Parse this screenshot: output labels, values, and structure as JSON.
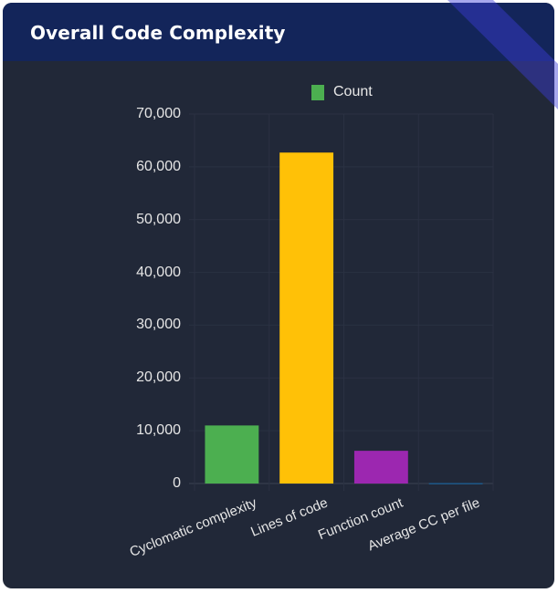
{
  "card": {
    "title": "Overall Code Complexity"
  },
  "legend": {
    "label": "Count",
    "color": "#4caf50"
  },
  "colors": {
    "header_bg": "#13255a",
    "card_bg": "#212838",
    "stripe": "#3b3bd6"
  },
  "chart_data": {
    "type": "bar",
    "title": "Overall Code Complexity",
    "categories": [
      "Cyclomatic complexity",
      "Lines of code",
      "Function count",
      "Average CC per file"
    ],
    "series": [
      {
        "name": "Count",
        "values": [
          11000,
          62700,
          6200,
          100
        ],
        "colors": [
          "#4caf50",
          "#ffc107",
          "#9c27b0",
          "#1e5a8a"
        ]
      }
    ],
    "xlabel": "",
    "ylabel": "",
    "ylim": [
      0,
      70000
    ],
    "yticks": [
      "0",
      "10,000",
      "20,000",
      "30,000",
      "40,000",
      "50,000",
      "60,000",
      "70,000"
    ],
    "ytick_values": [
      0,
      10000,
      20000,
      30000,
      40000,
      50000,
      60000,
      70000
    ],
    "grid": true,
    "legend_position": "top"
  }
}
